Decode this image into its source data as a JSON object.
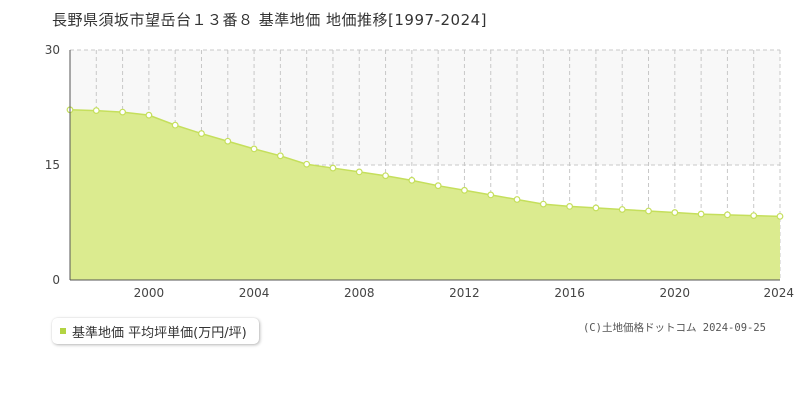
{
  "chart_data": {
    "type": "area",
    "title": "長野県須坂市望岳台１３番８ 基準地価 地価推移[1997-2024]",
    "xlabel": "",
    "ylabel": "",
    "xlim": [
      1997,
      2024
    ],
    "ylim": [
      0,
      30
    ],
    "y_ticks": [
      0,
      15,
      30
    ],
    "x_ticks": [
      2000,
      2004,
      2008,
      2012,
      2016,
      2020,
      2024
    ],
    "grid": true,
    "legend_position": "bottom-left",
    "series": [
      {
        "name": "基準地価 平均坪単価(万円/坪)",
        "x": [
          1997,
          1998,
          1999,
          2000,
          2001,
          2002,
          2003,
          2004,
          2005,
          2006,
          2007,
          2008,
          2009,
          2010,
          2011,
          2012,
          2013,
          2014,
          2015,
          2016,
          2017,
          2018,
          2019,
          2020,
          2021,
          2022,
          2023,
          2024
        ],
        "values": [
          22.2,
          22.1,
          21.9,
          21.5,
          20.2,
          19.1,
          18.1,
          17.1,
          16.2,
          15.1,
          14.6,
          14.1,
          13.6,
          13.0,
          12.3,
          11.7,
          11.1,
          10.5,
          9.9,
          9.6,
          9.4,
          9.2,
          9.0,
          8.8,
          8.6,
          8.5,
          8.4,
          8.3
        ]
      }
    ]
  },
  "colors": {
    "area_fill": "#dbeb8f",
    "line": "#c5df5c",
    "marker_fill": "#ffffff",
    "upper_band": "#f8f8f8",
    "legend_swatch": "#b3d443"
  },
  "legend_label": "基準地価 平均坪単価(万円/坪)",
  "copyright": "(C)土地価格ドットコム 2024-09-25"
}
